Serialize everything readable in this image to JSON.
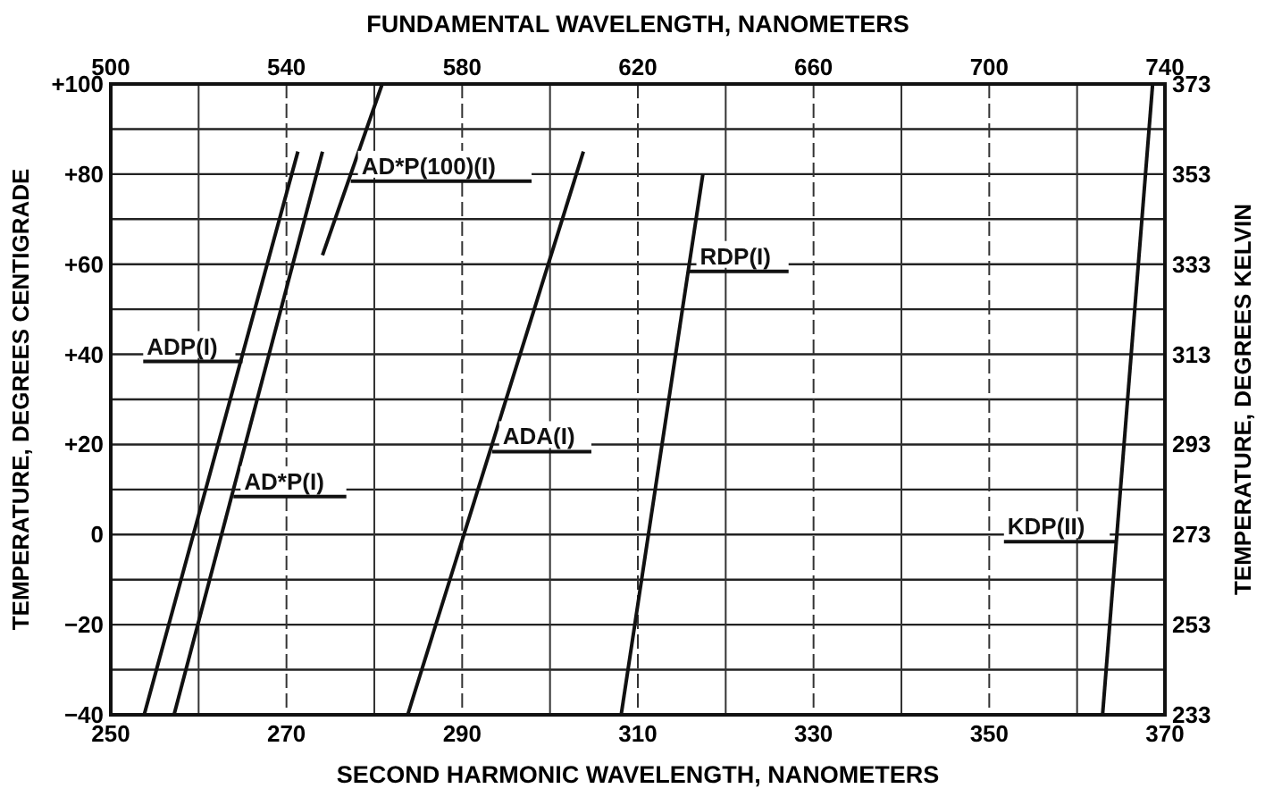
{
  "chart_data": {
    "type": "line",
    "xlabel": "SECOND HARMONIC WAVELENGTH, NANOMETERS",
    "x2label": "FUNDAMENTAL WAVELENGTH, NANOMETERS",
    "ylabel": "TEMPERATURE, DEGREES CENTIGRADE",
    "y2label": "TEMPERATURE, DEGREES KELVIN",
    "xlim": [
      250,
      370
    ],
    "xticks": [
      250,
      {
        "value": 260,
        "label": null
      },
      270,
      {
        "value": 280,
        "label": null
      },
      290,
      {
        "value": 300,
        "label": null
      },
      310,
      {
        "value": 320,
        "label": null
      },
      330,
      {
        "value": 340,
        "label": null
      },
      350,
      {
        "value": 360,
        "label": null
      },
      370
    ],
    "x2lim": [
      500,
      740
    ],
    "x2ticks": [
      500,
      540,
      580,
      620,
      660,
      700,
      740
    ],
    "ylim": [
      -40,
      100
    ],
    "yticks": [
      {
        "value": -40,
        "label": "−40"
      },
      {
        "value": -30,
        "label": null
      },
      {
        "value": -20,
        "label": "−20"
      },
      {
        "value": -10,
        "label": null
      },
      0,
      {
        "value": 10,
        "label": null
      },
      {
        "value": 20,
        "label": "+20"
      },
      {
        "value": 30,
        "label": null
      },
      {
        "value": 40,
        "label": "+40"
      },
      {
        "value": 50,
        "label": null
      },
      {
        "value": 60,
        "label": "+60"
      },
      {
        "value": 70,
        "label": null
      },
      {
        "value": 80,
        "label": "+80"
      },
      {
        "value": 90,
        "label": null
      },
      {
        "value": 100,
        "label": "+100"
      }
    ],
    "y2lim": [
      233,
      373
    ],
    "y2ticks": [
      233,
      253,
      273,
      293,
      313,
      333,
      353,
      373
    ],
    "grid": true,
    "marker": "none",
    "line_style": "solid",
    "series": [
      {
        "name": "ADP(I)",
        "color": "#111111",
        "x": [
          253.8,
          271.3
        ],
        "values": [
          -40,
          85
        ]
      },
      {
        "name": "AD*P(I)",
        "color": "#111111",
        "x": [
          257.2,
          274.1
        ],
        "values": [
          -40,
          85
        ]
      },
      {
        "name": "AD*P(100)(I)",
        "color": "#111111",
        "x": [
          274.1,
          280.9
        ],
        "values": [
          62,
          100
        ]
      },
      {
        "name": "ADA(I)",
        "color": "#111111",
        "x": [
          283.8,
          303.8
        ],
        "values": [
          -40,
          85
        ]
      },
      {
        "name": "RDP(I)",
        "color": "#111111",
        "x": [
          308.1,
          317.4
        ],
        "values": [
          -40,
          80
        ]
      },
      {
        "name": "KDP(II)",
        "color": "#111111",
        "x": [
          362.9,
          368.6
        ],
        "values": [
          -40,
          100
        ]
      }
    ]
  }
}
